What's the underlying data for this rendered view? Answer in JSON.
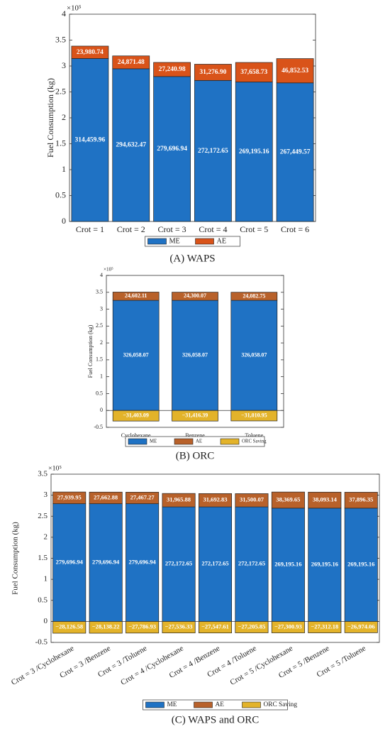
{
  "chart_data": [
    {
      "type": "bar",
      "stacked": true,
      "caption": "(A) WAPS",
      "y_label": "Fuel Consumption (kg)",
      "y_multiplier": "×10⁵",
      "categories": [
        "Crot = 1",
        "Crot = 2",
        "Crot = 3",
        "Crot = 4",
        "Crot = 5",
        "Crot = 6"
      ],
      "series": [
        {
          "name": "ME",
          "color": "#1f72c4",
          "values": [
            314459.96,
            294632.47,
            279696.94,
            272172.65,
            269195.16,
            267449.57
          ],
          "value_labels": [
            "314,459.96",
            "294,632.47",
            "279,696.94",
            "272,172.65",
            "269,195.16",
            "267,449.57"
          ]
        },
        {
          "name": "AE",
          "color": "#d95319",
          "values": [
            23980.74,
            24871.48,
            27240.98,
            31276.9,
            37658.73,
            46852.53
          ],
          "value_labels": [
            "23,980.74",
            "24,871.48",
            "27,240.98",
            "31,276.90",
            "37,658.73",
            "46,852.53"
          ]
        }
      ],
      "ylim": [
        0,
        400000
      ],
      "yticks": [
        0,
        {
          "value": 50000,
          "label": "0.5"
        },
        {
          "value": 100000,
          "label": "1"
        },
        {
          "value": 150000,
          "label": "1.5"
        },
        {
          "value": 200000,
          "label": "2"
        },
        {
          "value": 250000,
          "label": "2.5"
        },
        {
          "value": 300000,
          "label": "3"
        },
        {
          "value": 350000,
          "label": "3.5"
        },
        {
          "value": 400000,
          "label": "4"
        }
      ],
      "legend": "bottom"
    },
    {
      "type": "bar",
      "stacked": true,
      "caption": "(B) ORC",
      "y_label": "Fuel Consumption (kg)",
      "y_multiplier": "×10⁵",
      "categories": [
        "Cyclohexane",
        "Benzene",
        "Toluene"
      ],
      "series": [
        {
          "name": "ME",
          "color": "#1f72c4",
          "values": [
            326058.07,
            326058.07,
            326058.07
          ],
          "value_labels": [
            "326,058.07",
            "326,058.07",
            "326,058.07"
          ]
        },
        {
          "name": "AE",
          "color": "#b8612a",
          "values": [
            24602.11,
            24300.07,
            24082.75
          ],
          "value_labels": [
            "24,602.11",
            "24,300.07",
            "24,082.75"
          ]
        },
        {
          "name": "ORC Saving",
          "color": "#e3b32a",
          "values": [
            -31403.09,
            -31416.39,
            -31010.95
          ],
          "value_labels": [
            "−31,403.09",
            "−31,416.39",
            "−31,010.95"
          ]
        }
      ],
      "ylim": [
        -50000,
        400000
      ],
      "yticks": [
        {
          "value": -50000,
          "label": "-0.5"
        },
        0,
        {
          "value": 50000,
          "label": "0.5"
        },
        {
          "value": 100000,
          "label": "1"
        },
        {
          "value": 150000,
          "label": "1.5"
        },
        {
          "value": 200000,
          "label": "2"
        },
        {
          "value": 250000,
          "label": "2.5"
        },
        {
          "value": 300000,
          "label": "3"
        },
        {
          "value": 350000,
          "label": "3.5"
        },
        {
          "value": 400000,
          "label": "4"
        }
      ],
      "legend": "bottom"
    },
    {
      "type": "bar",
      "stacked": true,
      "caption": "(C) WAPS and ORC",
      "y_label": "Fuel Consumption (kg)",
      "y_multiplier": "×10⁵",
      "categories": [
        "Crot = 3 /Cyclohexane",
        "Crot = 3 /Benzene",
        "Crot = 3 /Toluene",
        "Crot = 4 /Cyclohexane",
        "Crot = 4 /Benzene",
        "Crot = 4 /Toluene",
        "Crot = 5 /Cyclohexane",
        "Crot = 5 /Benzene",
        "Crot = 5 /Toluene"
      ],
      "series": [
        {
          "name": "ME",
          "color": "#1f72c4",
          "values": [
            279696.94,
            279696.94,
            279696.94,
            272172.65,
            272172.65,
            272172.65,
            269195.16,
            269195.16,
            269195.16
          ],
          "value_labels": [
            "279,696.94",
            "279,696.94",
            "279,696.94",
            "272,172.65",
            "272,172.65",
            "272,172.65",
            "269,195.16",
            "269,195.16",
            "269,195.16"
          ]
        },
        {
          "name": "AE",
          "color": "#b8612a",
          "values": [
            27939.95,
            27662.88,
            27467.27,
            31965.88,
            31692.83,
            31500.07,
            38369.65,
            38093.14,
            37896.35
          ],
          "value_labels": [
            "27,939.95",
            "27,662.88",
            "27,467.27",
            "31,965.88",
            "31,692.83",
            "31,500.07",
            "38,369.65",
            "38,093.14",
            "37,896.35"
          ]
        },
        {
          "name": "ORC Saving",
          "color": "#e3b32a",
          "values": [
            -28126.58,
            -28138.22,
            -27786.93,
            -27536.33,
            -27547.61,
            -27205.85,
            -27300.93,
            -27312.18,
            -26974.06
          ],
          "value_labels": [
            "−28,126.58",
            "−28,138.22",
            "−27,786.93",
            "−27,536.33",
            "−27,547.61",
            "−27,205.85",
            "−27,300.93",
            "−27,312.18",
            "−26,974.06"
          ]
        }
      ],
      "ylim": [
        -50000,
        350000
      ],
      "yticks": [
        {
          "value": -50000,
          "label": "-0.5"
        },
        0,
        {
          "value": 50000,
          "label": "0.5"
        },
        {
          "value": 100000,
          "label": "1"
        },
        {
          "value": 150000,
          "label": "1.5"
        },
        {
          "value": 200000,
          "label": "2"
        },
        {
          "value": 250000,
          "label": "2.5"
        },
        {
          "value": 300000,
          "label": "3"
        },
        {
          "value": 350000,
          "label": "3.5"
        }
      ],
      "legend": "bottom"
    }
  ]
}
